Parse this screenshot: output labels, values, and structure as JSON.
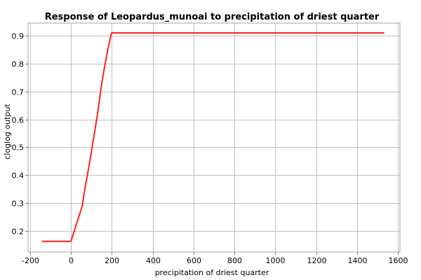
{
  "chart_data": {
    "type": "line",
    "title": "Response of Leopardus_munoai to precipitation of driest quarter",
    "xlabel": "precipitation of driest quarter",
    "ylabel": "cloglog output",
    "xlim": [
      -210,
      1610
    ],
    "ylim": [
      0.125,
      0.945
    ],
    "xticks": [
      -200,
      0,
      200,
      400,
      600,
      800,
      1000,
      1200,
      1400,
      1600
    ],
    "xtick_labels": [
      "-200",
      "0",
      "200",
      "400",
      "600",
      "800",
      "1000",
      "1200",
      "1400",
      "1600"
    ],
    "yticks": [
      0.2,
      0.3,
      0.4,
      0.5,
      0.6,
      0.7,
      0.8,
      0.9
    ],
    "ytick_labels": [
      "0.2",
      "0.3",
      "0.4",
      "0.5",
      "0.6",
      "0.7",
      "0.8",
      "0.9"
    ],
    "grid": true,
    "legend": "none",
    "series": [
      {
        "color": "#ff2020",
        "x": [
          -140,
          0,
          20,
          40,
          55,
          70,
          90,
          110,
          130,
          145,
          160,
          180,
          195,
          200,
          400,
          800,
          1200,
          1530
        ],
        "y": [
          0.163,
          0.163,
          0.21,
          0.255,
          0.29,
          0.36,
          0.44,
          0.53,
          0.62,
          0.7,
          0.77,
          0.85,
          0.9,
          0.91,
          0.91,
          0.91,
          0.91,
          0.91
        ]
      }
    ]
  }
}
